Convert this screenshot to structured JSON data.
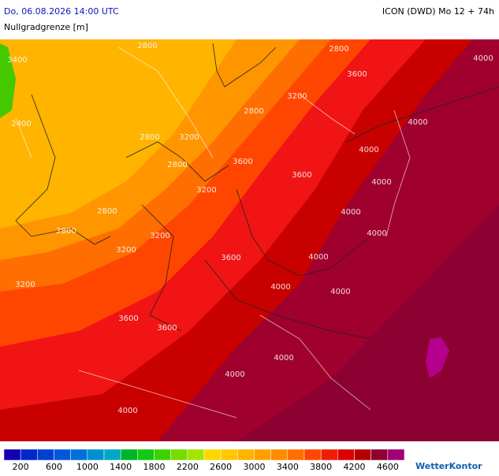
{
  "header": {
    "datetime": "Do, 06.08.2026 14:00 UTC",
    "model": "ICON (DWD) Mo 12 + 74h",
    "parameter": "Nullgradgrenze [m]"
  },
  "map": {
    "contour_labels": [
      "2800",
      "3400",
      "2800",
      "4000",
      "3600",
      "3200",
      "2800",
      "4000",
      "2400",
      "2800",
      "3200",
      "4000",
      "2800",
      "3600",
      "3600",
      "4000",
      "3200",
      "2800",
      "4000",
      "2800",
      "3200",
      "4000",
      "3200",
      "3600",
      "4000",
      "4000",
      "3200",
      "4000",
      "3600",
      "3600",
      "4000",
      "4000",
      "4000"
    ]
  },
  "legend": {
    "colors": [
      "#1400b4",
      "#0028c8",
      "#0040d0",
      "#0058d8",
      "#0070d8",
      "#0090d0",
      "#00a8c8",
      "#00b428",
      "#14c814",
      "#3cd200",
      "#78dc00",
      "#a0e600",
      "#ffd700",
      "#ffc800",
      "#ffb400",
      "#ffa000",
      "#ff8c00",
      "#ff6e00",
      "#ff4600",
      "#f01e00",
      "#dc0000",
      "#b40000",
      "#8c0032",
      "#a00078"
    ],
    "ticks": [
      200,
      600,
      1000,
      1400,
      1800,
      2200,
      2600,
      3000,
      3400,
      3800,
      4200,
      4600
    ]
  },
  "brand": "WetterKontor"
}
